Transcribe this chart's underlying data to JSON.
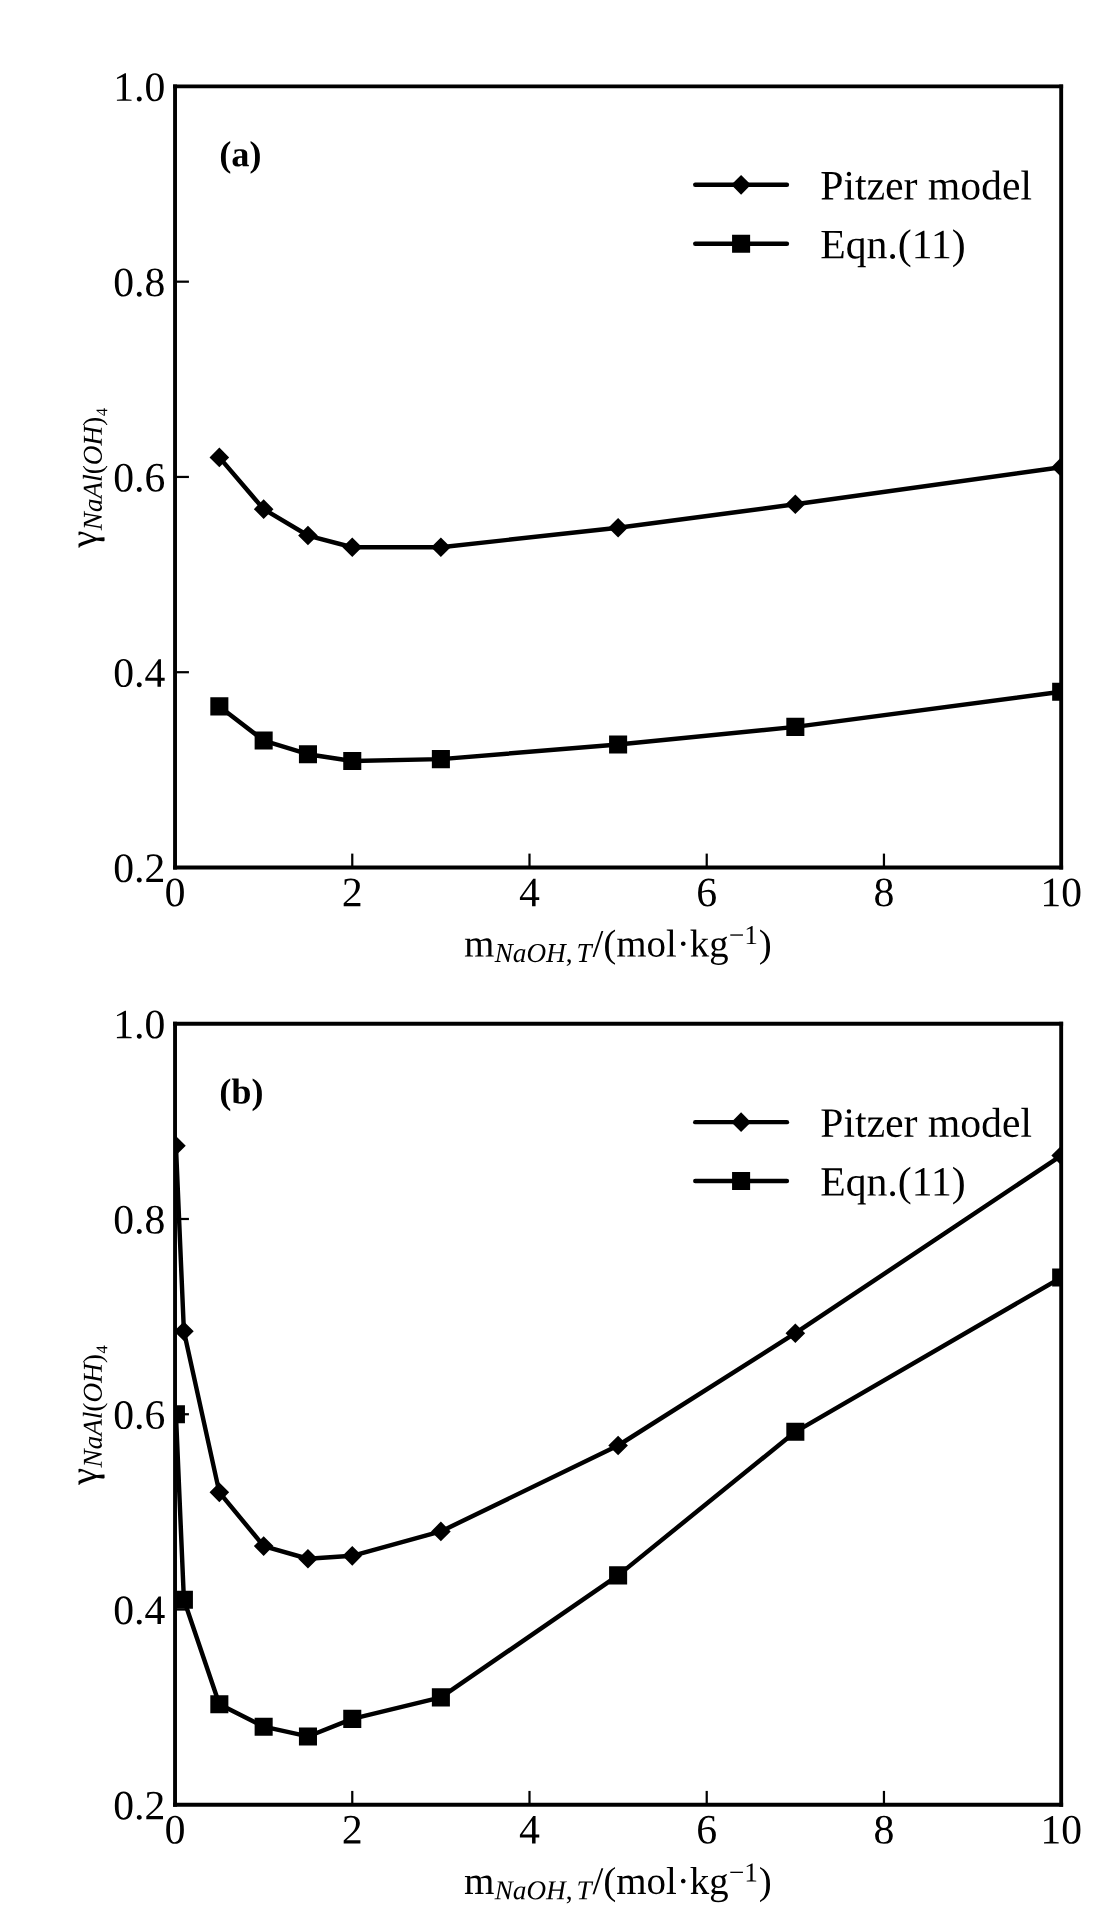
{
  "chart_data": [
    {
      "type": "line",
      "annotations": [
        "(a)"
      ],
      "xlabel": "m$_{NaOH,T}$/(mol·kg$^{−1}$)",
      "ylabel": "γ$_{NaAl(OH)₄}$",
      "xlim": [
        0,
        10
      ],
      "xticks": [
        0,
        2,
        4,
        6,
        8,
        10
      ],
      "ylim": [
        0.2,
        1.0
      ],
      "yticks": [
        0.2,
        0.4,
        0.6,
        0.8,
        {
          "value": 1.0,
          "label": "1.0"
        }
      ],
      "grid": false,
      "legend": "top right",
      "line_style": "solid",
      "series": [
        {
          "name": "Pitzer model",
          "color": "#000000",
          "marker": "diamond",
          "x": [
            0.5,
            1,
            1.5,
            2,
            3,
            5,
            7,
            10
          ],
          "values": [
            0.62,
            0.567,
            0.54,
            0.528,
            0.528,
            0.548,
            0.572,
            0.61
          ]
        },
        {
          "name": "Eqn.(11)",
          "color": "#000000",
          "marker": "square",
          "x": [
            0.5,
            1,
            1.5,
            2,
            3,
            5,
            7,
            10
          ],
          "values": [
            0.365,
            0.33,
            0.316,
            0.309,
            0.311,
            0.326,
            0.344,
            0.38
          ]
        }
      ]
    },
    {
      "type": "line",
      "annotations": [
        "(b)"
      ],
      "xlabel": "m$_{NaOH,T}$/(mol·kg$^{−1}$)",
      "ylabel": "γ$_{NaAl(OH)₄}$",
      "xlim": [
        0,
        10
      ],
      "xticks": [
        0,
        2,
        4,
        6,
        8,
        10
      ],
      "ylim": [
        0.2,
        1.0
      ],
      "yticks": [
        0.2,
        0.4,
        0.6,
        0.8,
        {
          "value": 1.0,
          "label": "1.0"
        }
      ],
      "grid": false,
      "legend": "top right",
      "line_style": "solid",
      "series": [
        {
          "name": "Pitzer model",
          "color": "#000000",
          "marker": "diamond",
          "x": [
            0.01,
            0.1,
            0.5,
            1,
            1.5,
            2,
            3,
            5,
            7,
            10
          ],
          "values": [
            0.875,
            0.685,
            0.52,
            0.465,
            0.452,
            0.455,
            0.48,
            0.568,
            0.683,
            0.865
          ]
        },
        {
          "name": "Eqn.(11)",
          "color": "#000000",
          "marker": "square",
          "x": [
            0.01,
            0.1,
            0.5,
            1,
            1.5,
            2,
            3,
            5,
            7,
            10
          ],
          "values": [
            0.6,
            0.41,
            0.303,
            0.28,
            0.27,
            0.288,
            0.31,
            0.435,
            0.582,
            0.74
          ]
        }
      ]
    }
  ]
}
